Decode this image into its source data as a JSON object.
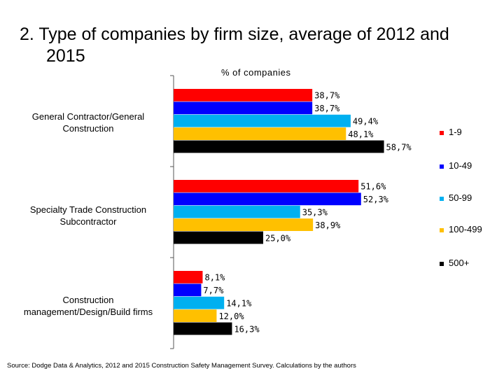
{
  "chart_data": {
    "type": "bar",
    "orientation": "horizontal",
    "title": "2. Type of companies by firm size, average of 2012 and 2015",
    "title_lines": [
      "2. Type of companies by firm size, average of 2012 and",
      "2015"
    ],
    "xlabel": "% of companies",
    "categories": [
      "General Contractor/General Construction",
      "Specialty Trade Construction Subcontractor",
      "Construction management/Design/Build firms"
    ],
    "category_lines": [
      [
        "General Contractor/General",
        "Construction"
      ],
      [
        "Specialty Trade Construction",
        "Subcontractor"
      ],
      [
        "Construction",
        "management/Design/Build firms"
      ]
    ],
    "series": [
      {
        "name": "1-9",
        "color": "#ff0000",
        "values": [
          38.7,
          51.6,
          8.1
        ],
        "labels": [
          "38,7%",
          "51,6%",
          "8,1%"
        ]
      },
      {
        "name": "10-49",
        "color": "#0000ff",
        "values": [
          38.7,
          52.3,
          7.7
        ],
        "labels": [
          "38,7%",
          "52,3%",
          "7,7%"
        ]
      },
      {
        "name": "50-99",
        "color": "#00b0f0",
        "values": [
          49.4,
          35.3,
          14.1
        ],
        "labels": [
          "49,4%",
          "35,3%",
          "14,1%"
        ]
      },
      {
        "name": "100-499",
        "color": "#ffc000",
        "values": [
          48.1,
          38.9,
          12.0
        ],
        "labels": [
          "48,1%",
          "38,9%",
          "12,0%"
        ]
      },
      {
        "name": "500+",
        "color": "#000000",
        "values": [
          58.7,
          25.0,
          16.3
        ],
        "labels": [
          "58,7%",
          "25,0%",
          "16,3%"
        ]
      }
    ],
    "legend_position": "right",
    "grid": false,
    "source": "Source: Dodge Data & Analytics, 2012 and 2015 Construction Safety Management Survey. Calculations by the authors"
  }
}
